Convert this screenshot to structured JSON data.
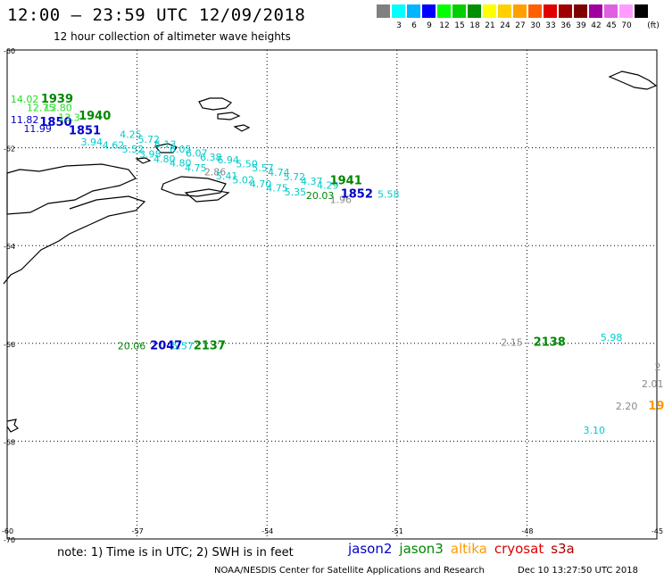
{
  "header": {
    "title": "12:00 — 23:59 UTC 12/09/2018",
    "subtitle": "12 hour collection of altimeter wave heights"
  },
  "scale": {
    "unit": "(ft)",
    "bins": [
      {
        "label": "",
        "color": "#808080"
      },
      {
        "label": "3",
        "color": "#00ffff"
      },
      {
        "label": "6",
        "color": "#00b4ff"
      },
      {
        "label": "9",
        "color": "#0000ff"
      },
      {
        "label": "12",
        "color": "#00ff00"
      },
      {
        "label": "15",
        "color": "#00d000"
      },
      {
        "label": "18",
        "color": "#009000"
      },
      {
        "label": "21",
        "color": "#ffff00"
      },
      {
        "label": "24",
        "color": "#ffd000"
      },
      {
        "label": "27",
        "color": "#ffa000"
      },
      {
        "label": "30",
        "color": "#ff6000"
      },
      {
        "label": "33",
        "color": "#e00000"
      },
      {
        "label": "36",
        "color": "#a00000"
      },
      {
        "label": "39",
        "color": "#800000"
      },
      {
        "label": "42",
        "color": "#a000a0"
      },
      {
        "label": "45",
        "color": "#e060e0"
      },
      {
        "label": "70",
        "color": "#ff9cff"
      },
      {
        "label": "",
        "color": "#000000"
      }
    ]
  },
  "map": {
    "lat_ticks": [
      "-60",
      "-62",
      "-64",
      "-66",
      "-68",
      "-70"
    ],
    "lon_ticks": [
      "-60",
      "-57",
      "-54",
      "-51",
      "-48",
      "-45"
    ],
    "observations": [
      {
        "text": "14.02",
        "color": "#22dd22",
        "lon": -59.92,
        "lat": -61.08,
        "size": 11
      },
      {
        "text": "1939",
        "color": "#008800",
        "lon": -59.22,
        "lat": -61.08,
        "size": 13,
        "bold": true
      },
      {
        "text": "12.75",
        "color": "#22dd22",
        "lon": -59.55,
        "lat": -61.25,
        "size": 11
      },
      {
        "text": "13.80",
        "color": "#22dd22",
        "lon": -59.15,
        "lat": -61.25,
        "size": 11
      },
      {
        "text": "11.82",
        "color": "#0000cc",
        "lon": -59.92,
        "lat": -61.5,
        "size": 11
      },
      {
        "text": "1850",
        "color": "#0000cc",
        "lon": -59.25,
        "lat": -61.55,
        "size": 13,
        "bold": true
      },
      {
        "text": "1940",
        "color": "#008800",
        "lon": -58.35,
        "lat": -61.42,
        "size": 13,
        "bold": true
      },
      {
        "text": "13.3",
        "color": "#22dd22",
        "lon": -58.82,
        "lat": -61.45,
        "size": 11
      },
      {
        "text": "11.99",
        "color": "#0000cc",
        "lon": -59.62,
        "lat": -61.68,
        "size": 11
      },
      {
        "text": "1851",
        "color": "#0000cc",
        "lon": -58.58,
        "lat": -61.72,
        "size": 13,
        "bold": true
      },
      {
        "text": "4.25",
        "color": "#00cccc",
        "lon": -57.4,
        "lat": -61.8,
        "size": 11
      },
      {
        "text": "3.94",
        "color": "#00cccc",
        "lon": -58.3,
        "lat": -61.95,
        "size": 11
      },
      {
        "text": "4.62",
        "color": "#00cccc",
        "lon": -57.8,
        "lat": -62.02,
        "size": 11
      },
      {
        "text": "5.72",
        "color": "#00cccc",
        "lon": -56.98,
        "lat": -61.9,
        "size": 11
      },
      {
        "text": "5.52",
        "color": "#00cccc",
        "lon": -57.35,
        "lat": -62.1,
        "size": 11
      },
      {
        "text": "6.13",
        "color": "#00cccc",
        "lon": -56.6,
        "lat": -62.0,
        "size": 11
      },
      {
        "text": "3.98",
        "color": "#00cccc",
        "lon": -56.95,
        "lat": -62.2,
        "size": 11
      },
      {
        "text": "6.05",
        "color": "#00cccc",
        "lon": -56.25,
        "lat": -62.1,
        "size": 11
      },
      {
        "text": "4.80",
        "color": "#00cccc",
        "lon": -56.62,
        "lat": -62.3,
        "size": 11
      },
      {
        "text": "6.07",
        "color": "#00cccc",
        "lon": -55.88,
        "lat": -62.18,
        "size": 11
      },
      {
        "text": "4.80",
        "color": "#00cccc",
        "lon": -56.25,
        "lat": -62.38,
        "size": 11
      },
      {
        "text": "6.38",
        "color": "#00cccc",
        "lon": -55.55,
        "lat": -62.26,
        "size": 11
      },
      {
        "text": "4.75",
        "color": "#00cccc",
        "lon": -55.9,
        "lat": -62.48,
        "size": 11
      },
      {
        "text": "6.94",
        "color": "#00cccc",
        "lon": -55.15,
        "lat": -62.32,
        "size": 11
      },
      {
        "text": "2.86",
        "color": "#888888",
        "lon": -55.45,
        "lat": -62.56,
        "size": 11
      },
      {
        "text": "5.50",
        "color": "#00cccc",
        "lon": -54.72,
        "lat": -62.4,
        "size": 11
      },
      {
        "text": "5.41",
        "color": "#00cccc",
        "lon": -55.18,
        "lat": -62.65,
        "size": 11
      },
      {
        "text": "5.57",
        "color": "#00cccc",
        "lon": -54.35,
        "lat": -62.48,
        "size": 11
      },
      {
        "text": "5.02",
        "color": "#00cccc",
        "lon": -54.8,
        "lat": -62.73,
        "size": 11
      },
      {
        "text": "4.74",
        "color": "#00cccc",
        "lon": -53.98,
        "lat": -62.57,
        "size": 11
      },
      {
        "text": "4.70",
        "color": "#00cccc",
        "lon": -54.4,
        "lat": -62.81,
        "size": 11
      },
      {
        "text": "5.72",
        "color": "#00cccc",
        "lon": -53.62,
        "lat": -62.66,
        "size": 11
      },
      {
        "text": "4.75",
        "color": "#00cccc",
        "lon": -54.02,
        "lat": -62.89,
        "size": 11
      },
      {
        "text": "4.37",
        "color": "#00cccc",
        "lon": -53.22,
        "lat": -62.76,
        "size": 11
      },
      {
        "text": "5.35",
        "color": "#00cccc",
        "lon": -53.6,
        "lat": -62.97,
        "size": 11
      },
      {
        "text": "4.29",
        "color": "#00cccc",
        "lon": -52.85,
        "lat": -62.84,
        "size": 11
      },
      {
        "text": "1941",
        "color": "#008800",
        "lon": -52.55,
        "lat": -62.75,
        "size": 13,
        "bold": true
      },
      {
        "text": "20.03",
        "color": "#008800",
        "lon": -53.1,
        "lat": -63.05,
        "size": 11
      },
      {
        "text": "1.96",
        "color": "#888888",
        "lon": -52.55,
        "lat": -63.13,
        "size": 11
      },
      {
        "text": "1852",
        "color": "#0000cc",
        "lon": -52.3,
        "lat": -63.02,
        "size": 13,
        "bold": true
      },
      {
        "text": "5.58",
        "color": "#00cccc",
        "lon": -51.45,
        "lat": -63.02,
        "size": 11
      },
      {
        "text": "20.06",
        "color": "#008800",
        "lon": -57.45,
        "lat": -66.12,
        "size": 11
      },
      {
        "text": "2047",
        "color": "#0000cc",
        "lon": -56.7,
        "lat": -66.12,
        "size": 13,
        "bold": true
      },
      {
        "text": "5.57",
        "color": "#00cccc",
        "lon": -56.2,
        "lat": -66.12,
        "size": 11
      },
      {
        "text": "2137",
        "color": "#008800",
        "lon": -55.7,
        "lat": -66.12,
        "size": 13,
        "bold": true
      },
      {
        "text": "2.15",
        "color": "#888888",
        "lon": -48.6,
        "lat": -66.05,
        "size": 11
      },
      {
        "text": "2138",
        "color": "#008800",
        "lon": -47.85,
        "lat": -66.05,
        "size": 13,
        "bold": true
      },
      {
        "text": "5.98",
        "color": "#00cccc",
        "lon": -46.3,
        "lat": -65.95,
        "size": 11
      },
      {
        "text": "2",
        "color": "#888888",
        "lon": -45.05,
        "lat": -66.55,
        "size": 11
      },
      {
        "text": "2.01",
        "color": "#888888",
        "lon": -45.35,
        "lat": -66.9,
        "size": 11
      },
      {
        "text": "2.20",
        "color": "#888888",
        "lon": -45.95,
        "lat": -67.35,
        "size": 11
      },
      {
        "text": "19",
        "color": "#ff9900",
        "lon": -45.2,
        "lat": -67.35,
        "size": 13,
        "bold": true
      },
      {
        "text": "3.10",
        "color": "#00cccc",
        "lon": -46.7,
        "lat": -67.85,
        "size": 11
      }
    ]
  },
  "footer": {
    "note_label": "note:",
    "note_1": "1) Time is in UTC;",
    "note_2": "2) SWH is in feet",
    "satellites": [
      {
        "name": "jason2",
        "color": "#0000cc"
      },
      {
        "name": "jason3",
        "color": "#008800"
      },
      {
        "name": "altika",
        "color": "#ff9900"
      },
      {
        "name": "cryosat",
        "color": "#dd0000"
      },
      {
        "name": "s3a",
        "color": "#aa0000"
      }
    ],
    "credits": "NOAA/NESDIS Center for Satellite Applications and Research",
    "timestamp": "Dec 10 13:27:50 UTC 2018"
  }
}
